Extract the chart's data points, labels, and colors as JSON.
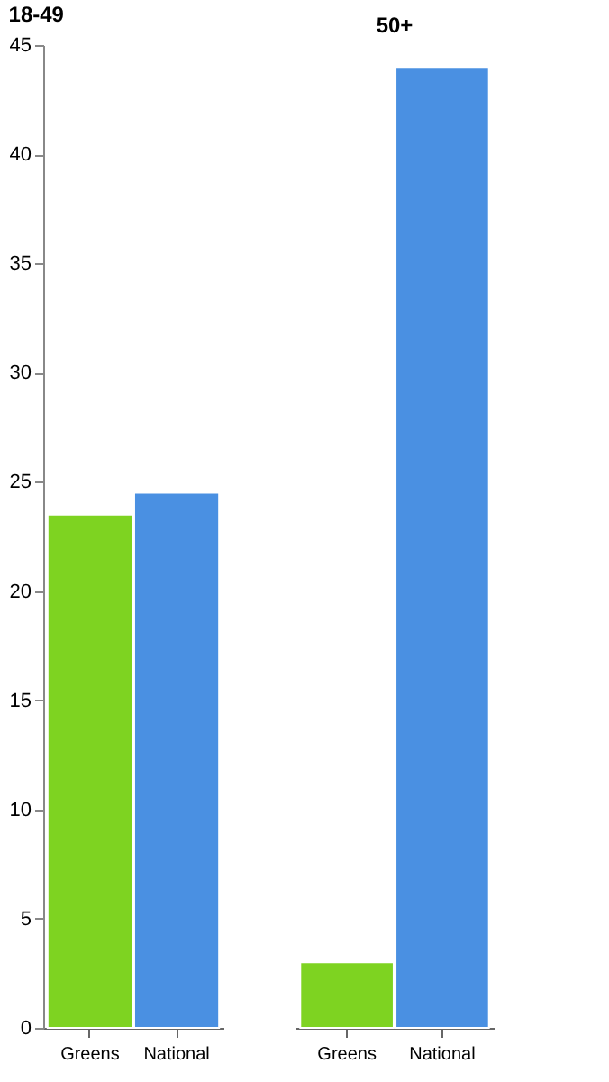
{
  "chart_data": [
    {
      "type": "bar",
      "title": "18-49",
      "categories": [
        "Greens",
        "National"
      ],
      "values": [
        23.5,
        24.5
      ],
      "colors": [
        "#7ed321",
        "#4a90e2"
      ],
      "ylim": [
        0,
        45
      ],
      "yticks": [
        0,
        5,
        10,
        15,
        20,
        25,
        30,
        35,
        40,
        45
      ],
      "grid": false
    },
    {
      "type": "bar",
      "title": "50+",
      "categories": [
        "Greens",
        "National"
      ],
      "values": [
        3,
        44
      ],
      "colors": [
        "#7ed321",
        "#4a90e2"
      ],
      "ylim": [
        0,
        45
      ],
      "yticks": [
        0,
        5,
        10,
        15,
        20,
        25,
        30,
        35,
        40,
        45
      ],
      "grid": false,
      "tick_labels": "x"
    }
  ]
}
